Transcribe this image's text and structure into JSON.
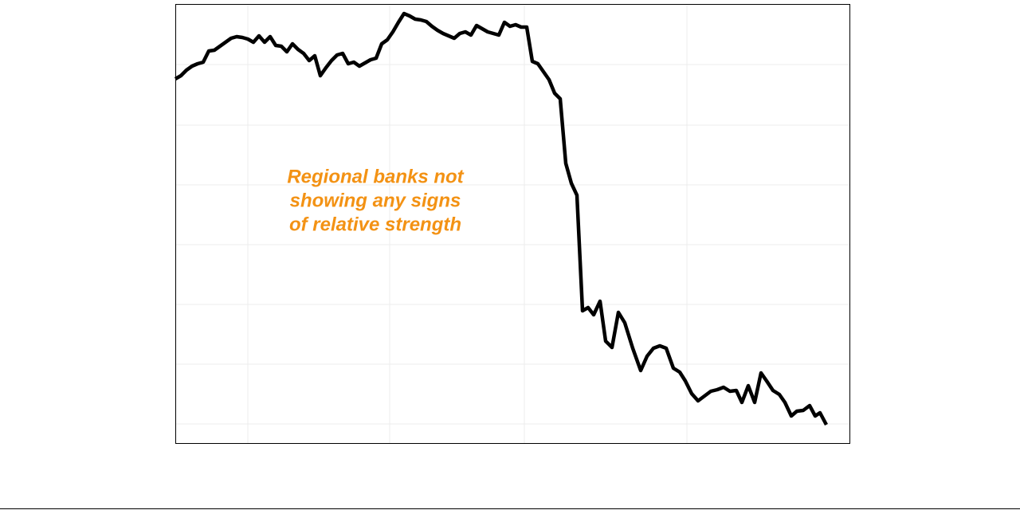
{
  "chart_data": {
    "type": "line",
    "annotation": [
      "Regional banks not",
      "showing any signs",
      "of relative strength"
    ],
    "x": [
      0,
      7,
      14,
      21,
      28,
      35,
      42,
      49,
      56,
      63,
      70,
      77,
      84,
      91,
      98,
      105,
      112,
      119,
      126,
      133,
      140,
      147,
      154,
      161,
      168,
      175,
      182,
      189,
      196,
      203,
      210,
      217,
      224,
      231,
      238,
      245,
      252,
      259,
      266,
      273,
      280,
      287,
      294,
      301,
      308,
      315,
      322,
      329,
      336,
      343,
      350,
      357,
      364,
      371,
      378,
      385,
      392,
      399,
      406,
      413,
      420,
      427,
      434,
      441,
      448,
      455,
      462,
      469,
      476,
      483,
      490,
      497,
      504,
      511,
      518,
      525,
      533,
      540,
      548,
      556,
      564,
      574,
      584,
      592,
      600,
      608,
      616,
      625,
      633,
      640,
      648,
      656,
      664,
      672,
      680,
      688,
      696,
      704,
      711,
      719,
      727,
      735,
      742,
      750,
      758,
      765,
      773,
      780,
      788,
      796,
      803,
      809,
      817
    ],
    "values": [
      457,
      461,
      468,
      473,
      476,
      478,
      492,
      493,
      498,
      503,
      508,
      510,
      509,
      507,
      503,
      511,
      503,
      510,
      499,
      498,
      491,
      501,
      494,
      489,
      480,
      486,
      461,
      471,
      480,
      487,
      489,
      476,
      478,
      473,
      477,
      481,
      483,
      501,
      506,
      516,
      528,
      539,
      536,
      532,
      531,
      529,
      523,
      518,
      514,
      511,
      508,
      514,
      516,
      512,
      524,
      520,
      516,
      514,
      512,
      528,
      523,
      525,
      522,
      522,
      479,
      476,
      466,
      456,
      439,
      432,
      351,
      326,
      311,
      166,
      170,
      161,
      178,
      128,
      120,
      164,
      151,
      119,
      91,
      109,
      119,
      122,
      119,
      94,
      89,
      78,
      62,
      53,
      59,
      65,
      67,
      70,
      65,
      66,
      51,
      72,
      51,
      88,
      78,
      66,
      61,
      51,
      34,
      40,
      41,
      47,
      34,
      38,
      23
    ],
    "color": "#000000",
    "xlim": [
      0,
      846
    ],
    "ylim": [
      0,
      551
    ],
    "xticks": [
      91,
      269,
      438,
      642
    ],
    "yticks": [
      24,
      99,
      174,
      249,
      324,
      399,
      475
    ],
    "grid": true
  }
}
